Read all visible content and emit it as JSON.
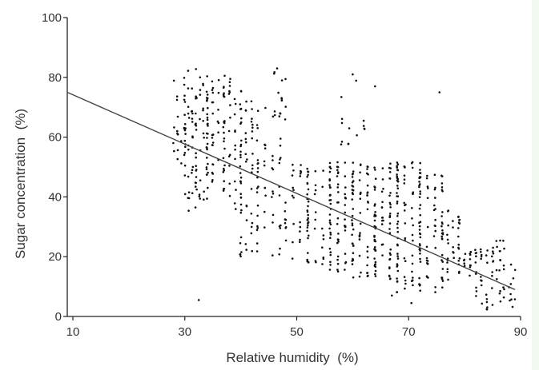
{
  "chart_data": {
    "type": "scatter",
    "title": "",
    "xlabel": "Relative humidity  (%)",
    "ylabel": "Sugar concentration  (%)",
    "xlim": [
      9,
      90
    ],
    "ylim": [
      0,
      100
    ],
    "x_ticks": [
      10,
      30,
      50,
      70,
      90
    ],
    "y_ticks": [
      0,
      20,
      40,
      60,
      80,
      100
    ],
    "grid": false,
    "point_color": "#111111",
    "line_color": "#444444",
    "clusters": [
      {
        "x": [
          28,
          30
        ],
        "y": [
          48,
          83
        ],
        "n": 24
      },
      {
        "x": [
          30,
          32
        ],
        "y": [
          35,
          83
        ],
        "n": 46
      },
      {
        "x": [
          32,
          34
        ],
        "y": [
          38,
          82
        ],
        "n": 42
      },
      {
        "x": [
          34,
          37
        ],
        "y": [
          42,
          82
        ],
        "n": 58
      },
      {
        "x": [
          37,
          40
        ],
        "y": [
          35,
          80
        ],
        "n": 50
      },
      {
        "x": [
          40,
          43
        ],
        "y": [
          20,
          78
        ],
        "n": 58
      },
      {
        "x": [
          43,
          47
        ],
        "y": [
          20,
          70
        ],
        "n": 48
      },
      {
        "x": [
          46,
          48
        ],
        "y": [
          60,
          83
        ],
        "n": 12
      },
      {
        "x": [
          48,
          52
        ],
        "y": [
          17,
          52
        ],
        "n": 40
      },
      {
        "x": [
          52,
          56
        ],
        "y": [
          17,
          52
        ],
        "n": 55
      },
      {
        "x": [
          56,
          60
        ],
        "y": [
          15,
          52
        ],
        "n": 68
      },
      {
        "x": [
          58,
          62
        ],
        "y": [
          55,
          80
        ],
        "n": 14
      },
      {
        "x": [
          60,
          64
        ],
        "y": [
          13,
          52
        ],
        "n": 80
      },
      {
        "x": [
          64,
          68
        ],
        "y": [
          12,
          52
        ],
        "n": 82
      },
      {
        "x": [
          68,
          72
        ],
        "y": [
          8,
          52
        ],
        "n": 78
      },
      {
        "x": [
          72,
          76
        ],
        "y": [
          8,
          48
        ],
        "n": 68
      },
      {
        "x": [
          76,
          79
        ],
        "y": [
          10,
          36
        ],
        "n": 36
      },
      {
        "x": [
          79,
          82
        ],
        "y": [
          13,
          22
        ],
        "n": 20
      },
      {
        "x": [
          82,
          85
        ],
        "y": [
          2,
          23
        ],
        "n": 34
      },
      {
        "x": [
          85,
          87
        ],
        "y": [
          4,
          26
        ],
        "n": 22
      },
      {
        "x": [
          88,
          89
        ],
        "y": [
          3,
          19
        ],
        "n": 10
      }
    ],
    "outliers": [
      {
        "x": 32.5,
        "y": 5.5
      },
      {
        "x": 70.5,
        "y": 4.5
      },
      {
        "x": 67,
        "y": 7
      },
      {
        "x": 75.5,
        "y": 75
      },
      {
        "x": 64,
        "y": 77
      },
      {
        "x": 60,
        "y": 81
      },
      {
        "x": 46.5,
        "y": 83
      }
    ],
    "regression_line": {
      "x": [
        9,
        89
      ],
      "y": [
        75,
        9
      ]
    }
  }
}
